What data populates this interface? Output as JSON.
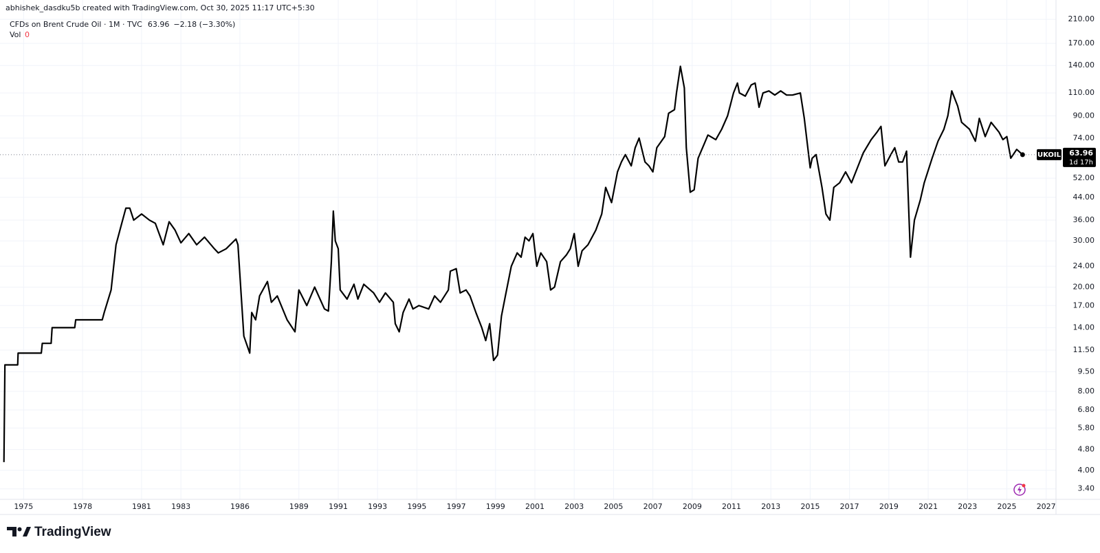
{
  "attribution": "abhishek_dasdku5b created with TradingView.com, Oct 30, 2025 11:17 UTC+5:30",
  "brand": "TradingView",
  "chart_data": {
    "type": "line",
    "title": "CFDs on Brent Crude Oil · 1M · TVC",
    "change_label": "−2.18 (−3.30%)",
    "volume_label": "Vol",
    "volume_value": 0,
    "countdown": "1d 17h",
    "log_scale": true,
    "grid": true,
    "x": [
      1974.0,
      1974.05,
      1974.7,
      1974.72,
      1975.9,
      1975.95,
      1976.4,
      1976.45,
      1977.6,
      1977.65,
      1979.0,
      1979.1,
      1979.45,
      1979.7,
      1979.9,
      1980.2,
      1980.4,
      1980.6,
      1981.0,
      1981.4,
      1981.7,
      1982.1,
      1982.4,
      1982.7,
      1983.0,
      1983.4,
      1983.8,
      1984.2,
      1984.7,
      1984.9,
      1985.3,
      1985.8,
      1985.9,
      1986.2,
      1986.5,
      1986.6,
      1986.8,
      1987.0,
      1987.4,
      1987.6,
      1987.9,
      1988.4,
      1988.8,
      1989.0,
      1989.4,
      1989.8,
      1990.3,
      1990.5,
      1990.65,
      1990.75,
      1990.85,
      1991.0,
      1991.1,
      1991.45,
      1991.8,
      1992.0,
      1992.3,
      1992.8,
      1993.1,
      1993.4,
      1993.8,
      1993.9,
      1994.1,
      1994.3,
      1994.6,
      1994.8,
      1995.1,
      1995.6,
      1995.9,
      1996.2,
      1996.6,
      1996.7,
      1997.0,
      1997.2,
      1997.5,
      1997.7,
      1998.0,
      1998.3,
      1998.5,
      1998.7,
      1998.9,
      1999.1,
      1999.3,
      1999.5,
      1999.8,
      2000.1,
      2000.3,
      2000.5,
      2000.7,
      2000.9,
      2001.1,
      2001.3,
      2001.6,
      2001.8,
      2002.0,
      2002.3,
      2002.6,
      2002.8,
      2003.0,
      2003.2,
      2003.4,
      2003.7,
      2004.1,
      2004.4,
      2004.6,
      2004.9,
      2005.2,
      2005.4,
      2005.6,
      2005.9,
      2006.1,
      2006.3,
      2006.6,
      2006.8,
      2007.0,
      2007.2,
      2007.6,
      2007.8,
      2008.1,
      2008.2,
      2008.4,
      2008.6,
      2008.7,
      2008.9,
      2009.1,
      2009.3,
      2009.6,
      2009.8,
      2010.2,
      2010.5,
      2010.8,
      2011.1,
      2011.3,
      2011.4,
      2011.7,
      2012.0,
      2012.2,
      2012.4,
      2012.6,
      2012.9,
      2013.2,
      2013.5,
      2013.8,
      2014.1,
      2014.5,
      2014.7,
      2015.0,
      2015.1,
      2015.3,
      2015.6,
      2015.8,
      2016.0,
      2016.2,
      2016.5,
      2016.8,
      2017.1,
      2017.4,
      2017.7,
      2018.1,
      2018.4,
      2018.6,
      2018.8,
      2019.1,
      2019.3,
      2019.5,
      2019.7,
      2019.9,
      2020.1,
      2020.3,
      2020.6,
      2020.8,
      2021.2,
      2021.5,
      2021.8,
      2022.0,
      2022.2,
      2022.5,
      2022.7,
      2023.1,
      2023.4,
      2023.6,
      2023.9,
      2024.2,
      2024.6,
      2024.8,
      2025.0,
      2025.2,
      2025.5,
      2025.6,
      2025.8
    ],
    "series": [
      {
        "name": "UKOIL",
        "color": "#000000",
        "values": [
          4.3,
          10.1,
          10.1,
          11.2,
          11.2,
          12.2,
          12.2,
          14,
          14,
          15,
          15,
          16,
          19.5,
          29,
          33,
          40,
          40,
          36,
          38,
          36,
          35,
          29,
          35.5,
          33,
          29.5,
          32,
          29,
          31,
          28,
          27,
          28,
          30.5,
          29,
          13,
          11.2,
          16,
          15,
          18.5,
          21,
          17.5,
          18.5,
          15,
          13.5,
          19.5,
          17,
          20,
          16.5,
          16.2,
          25,
          39,
          30,
          28,
          19.5,
          18,
          20.5,
          18,
          20.5,
          19,
          17.5,
          19,
          17.5,
          14.5,
          13.5,
          16,
          18,
          16.5,
          17,
          16.5,
          18.5,
          17.5,
          19.5,
          23,
          23.5,
          19,
          19.5,
          18.5,
          16,
          14,
          12.5,
          14.5,
          10.5,
          11,
          15.5,
          18.5,
          24,
          27,
          26,
          31,
          30,
          32,
          24,
          27,
          25,
          19.5,
          20,
          25,
          26.5,
          28,
          32,
          24,
          27.5,
          29,
          33,
          38,
          48,
          42,
          55,
          60,
          64,
          58,
          68,
          74,
          60,
          58,
          55,
          68,
          75,
          92,
          95,
          110,
          139,
          115,
          68,
          46,
          47,
          62,
          70,
          76,
          73,
          80,
          90,
          110,
          120,
          110,
          107,
          118,
          120,
          97,
          110,
          112,
          108,
          112,
          108,
          108,
          110,
          88,
          57,
          62,
          64,
          48,
          38,
          36,
          48,
          50,
          55,
          50,
          57,
          65,
          73,
          78,
          82,
          58,
          64,
          68,
          60,
          60,
          66,
          26,
          36,
          43,
          50,
          62,
          72,
          80,
          90,
          112,
          98,
          85,
          80,
          72,
          88,
          75,
          85,
          78,
          73,
          75,
          62,
          67,
          66,
          63.96
        ]
      }
    ],
    "xlim": [
      1973.8,
      2027.5
    ],
    "xticks": [
      1975,
      1978,
      1981,
      1983,
      1986,
      1989,
      1991,
      1993,
      1995,
      1997,
      1999,
      2001,
      2003,
      2005,
      2007,
      2009,
      2011,
      2013,
      2015,
      2017,
      2019,
      2021,
      2023,
      2025,
      2027
    ],
    "ylim": [
      3.1,
      240
    ],
    "yticks": [
      {
        "value": 210,
        "label": "210.00"
      },
      {
        "value": 170,
        "label": "170.00"
      },
      {
        "value": 140,
        "label": "140.00"
      },
      {
        "value": 110,
        "label": "110.00"
      },
      {
        "value": 90,
        "label": "90.00"
      },
      {
        "value": 74,
        "label": "74.00"
      },
      {
        "value": 52,
        "label": "52.00"
      },
      {
        "value": 44,
        "label": "44.00"
      },
      {
        "value": 36,
        "label": "36.00"
      },
      {
        "value": 30,
        "label": "30.00"
      },
      {
        "value": 24,
        "label": "24.00"
      },
      {
        "value": 20,
        "label": "20.00"
      },
      {
        "value": 17,
        "label": "17.00"
      },
      {
        "value": 14,
        "label": "14.00"
      },
      {
        "value": 11.5,
        "label": "11.50"
      },
      {
        "value": 9.5,
        "label": "9.50"
      },
      {
        "value": 8,
        "label": "8.00"
      },
      {
        "value": 6.8,
        "label": "6.80"
      },
      {
        "value": 5.8,
        "label": "5.80"
      },
      {
        "value": 4.8,
        "label": "4.80"
      },
      {
        "value": 4,
        "label": "4.00"
      },
      {
        "value": 3.4,
        "label": "3.40"
      }
    ]
  }
}
